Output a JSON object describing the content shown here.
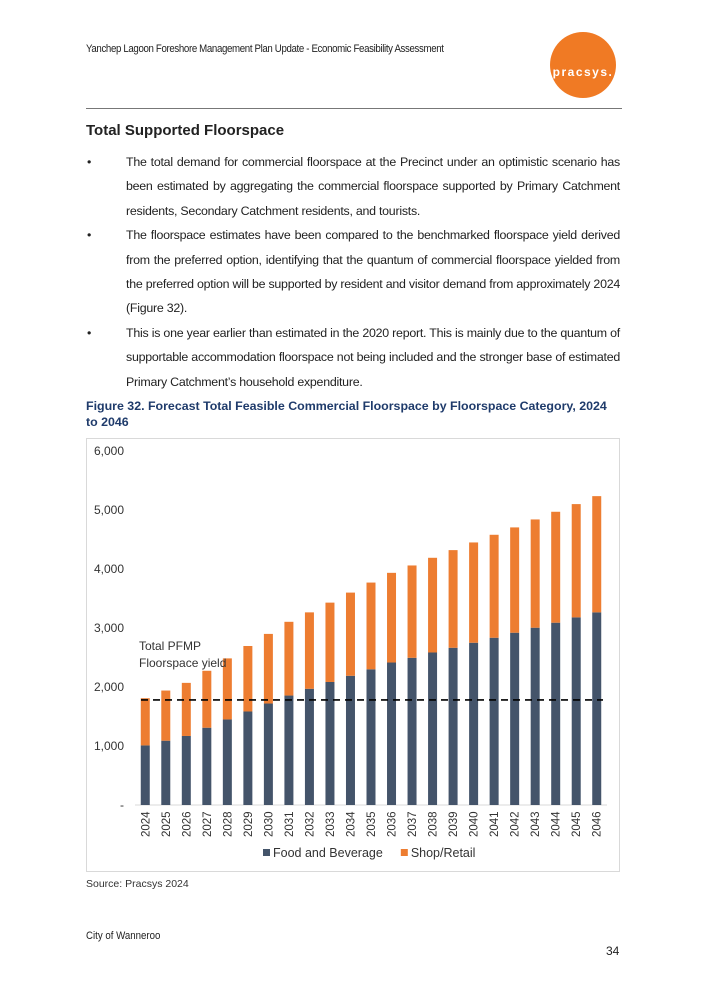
{
  "header": {
    "title": "Yanchep Lagoon Foreshore Management Plan Update - Economic Feasibility Assessment",
    "logo_text": "pracsys."
  },
  "section": {
    "heading": "Total Supported Floorspace",
    "bullets": [
      "The total demand for commercial floorspace at the Precinct under an optimistic scenario has been estimated by aggregating the commercial floorspace supported by Primary Catchment residents, Secondary Catchment residents, and tourists.",
      "The floorspace estimates have been compared to the benchmarked floorspace yield derived from the preferred option, identifying that the quantum of commercial floorspace yielded from the preferred option will be supported by resident and visitor demand from approximately 2024 (Figure 32).",
      "This is one year earlier than estimated in the 2020 report. This is mainly due to the quantum of supportable accommodation floorspace not being included and the stronger base of estimated Primary Catchment’s household expenditure."
    ]
  },
  "figure": {
    "caption": "Figure 32. Forecast Total Feasible Commercial Floorspace by Floorspace Category, 2024 to 2046",
    "source": "Source: Pracsys 2024"
  },
  "chart_data": {
    "type": "bar",
    "stacked": true,
    "categories": [
      "2024",
      "2025",
      "2026",
      "2027",
      "2028",
      "2029",
      "2030",
      "2031",
      "2032",
      "2033",
      "2034",
      "2035",
      "2036",
      "2037",
      "2038",
      "2039",
      "2040",
      "2041",
      "2042",
      "2043",
      "2044",
      "2045",
      "2046"
    ],
    "series": [
      {
        "name": "Food and Beverage",
        "color": "#44546a",
        "values": [
          1010,
          1090,
          1170,
          1310,
          1450,
          1585,
          1720,
          1855,
          1970,
          2085,
          2190,
          2300,
          2415,
          2495,
          2585,
          2665,
          2750,
          2835,
          2920,
          3005,
          3090,
          3180,
          3265
        ]
      },
      {
        "name": "Shop/Retail",
        "color": "#ed7d31",
        "values": [
          800,
          850,
          900,
          965,
          1035,
          1110,
          1180,
          1250,
          1295,
          1345,
          1410,
          1470,
          1520,
          1565,
          1605,
          1655,
          1700,
          1745,
          1785,
          1835,
          1880,
          1920,
          1970
        ]
      }
    ],
    "reference_line": {
      "label_lines": [
        "Total PFMP",
        "Floorspace yield"
      ],
      "value": 1780,
      "style": "dashed",
      "color": "#000000"
    },
    "yticks": [
      "-",
      "1,000",
      "2,000",
      "3,000",
      "4,000",
      "5,000",
      "6,000"
    ],
    "ylim": [
      0,
      6000
    ],
    "grid": false,
    "legend": "bottom"
  },
  "footer": {
    "org": "City of Wanneroo",
    "page": "34"
  }
}
